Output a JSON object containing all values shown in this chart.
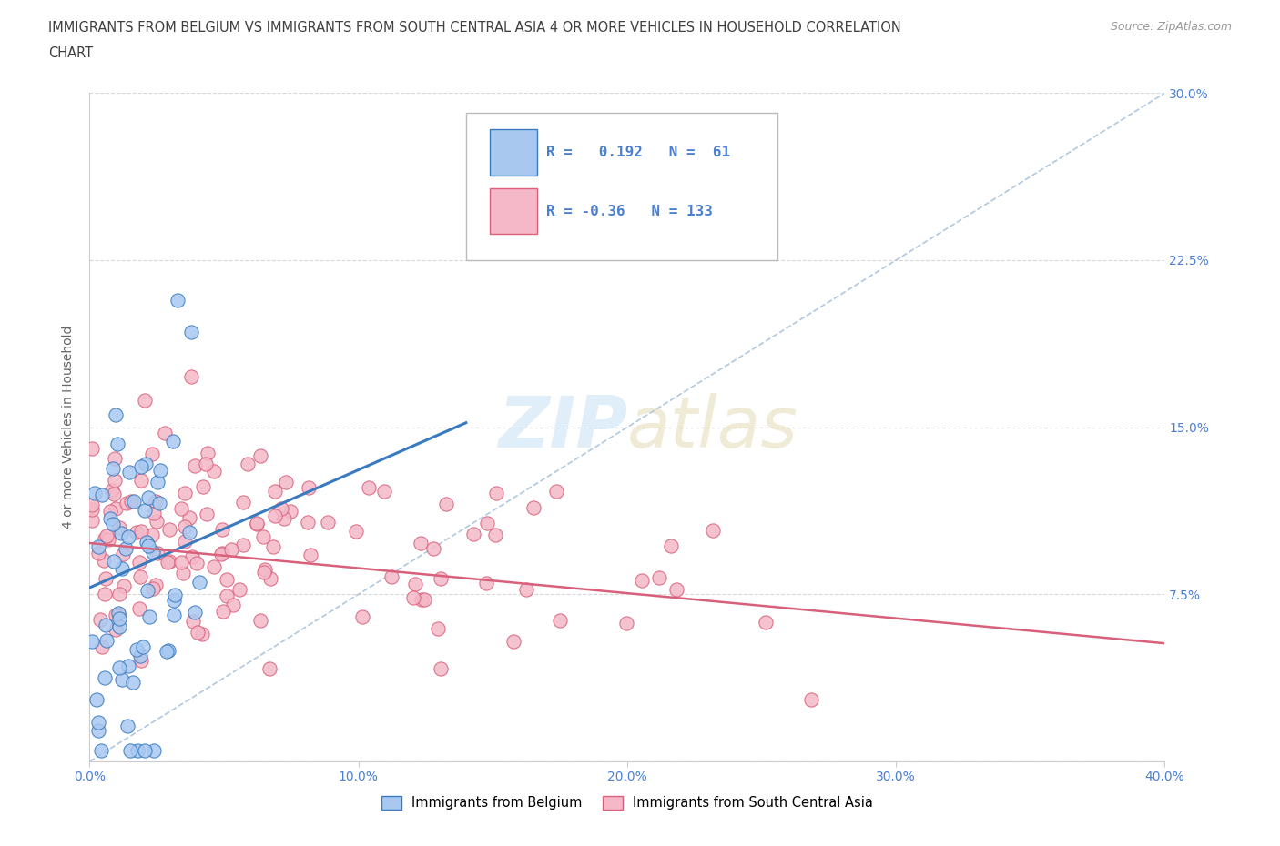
{
  "title_line1": "IMMIGRANTS FROM BELGIUM VS IMMIGRANTS FROM SOUTH CENTRAL ASIA 4 OR MORE VEHICLES IN HOUSEHOLD CORRELATION",
  "title_line2": "CHART",
  "source": "Source: ZipAtlas.com",
  "r_belgium": 0.192,
  "n_belgium": 61,
  "r_sca": -0.36,
  "n_sca": 133,
  "xlim": [
    0.0,
    0.4
  ],
  "ylim": [
    0.0,
    0.3
  ],
  "xticks": [
    0.0,
    0.1,
    0.2,
    0.3,
    0.4
  ],
  "xticklabels": [
    "0.0%",
    "10.0%",
    "20.0%",
    "30.0%",
    "40.0%"
  ],
  "yticks": [
    0.0,
    0.075,
    0.15,
    0.225,
    0.3
  ],
  "yticklabels_right": [
    "",
    "7.5%",
    "15.0%",
    "22.5%",
    "30.0%"
  ],
  "ylabel": "4 or more Vehicles in Household",
  "legend_label_belgium": "Immigrants from Belgium",
  "legend_label_sca": "Immigrants from South Central Asia",
  "color_belgium": "#a8c8f0",
  "color_sca": "#f4b8c8",
  "color_belgium_line": "#3a7abf",
  "color_sca_line": "#d9607a",
  "color_stat": "#4a7fd4",
  "watermark_zip": "ZIP",
  "watermark_atlas": "atlas",
  "background_color": "#ffffff",
  "grid_color": "#d8d8d8",
  "title_color": "#404040",
  "tick_color": "#4a7fd4",
  "bel_trend_x0": 0.0,
  "bel_trend_y0": 0.078,
  "bel_trend_x1": 0.14,
  "bel_trend_y1": 0.152,
  "sca_trend_x0": 0.0,
  "sca_trend_y0": 0.098,
  "sca_trend_x1": 0.4,
  "sca_trend_y1": 0.053
}
